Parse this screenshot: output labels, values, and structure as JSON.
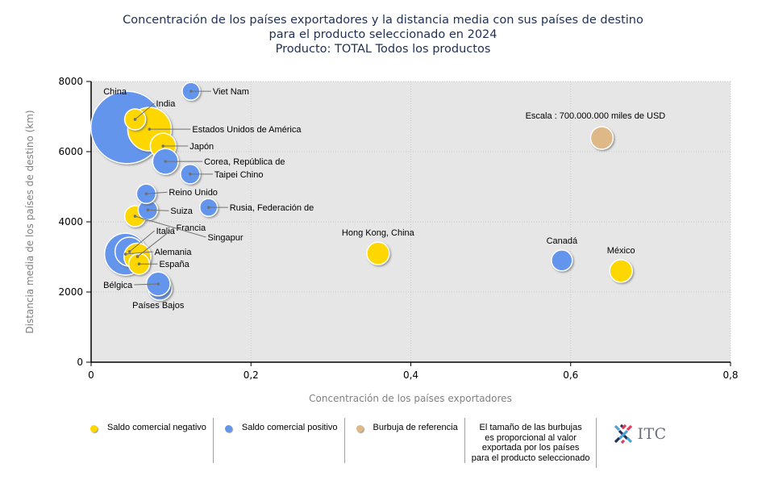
{
  "title": {
    "line1": "Concentración de los países exportadores y la distancia media con sus países de destino",
    "line2": "para el producto seleccionado en 2024",
    "line3": "Producto: TOTAL Todos los productos"
  },
  "colors": {
    "negative": "#FFD700",
    "positive": "#6495ED",
    "reference": "#DEB887",
    "plot_bg": "#E6E6E6"
  },
  "chart_data": {
    "type": "scatter",
    "subtype": "bubble",
    "title": "Concentración de los países exportadores y la distancia media con sus países de destino para el producto seleccionado en 2024 — Producto: TOTAL Todos los productos",
    "xlabel": "Concentración de los países exportadores",
    "ylabel": "Distancia media de los países de destino (km)",
    "xlim": [
      0,
      0.8
    ],
    "ylim": [
      0,
      8000
    ],
    "xticks": [
      "0",
      "0,2",
      "0,4",
      "0,6",
      "0,8"
    ],
    "yticks": [
      "0",
      "2000",
      "4000",
      "6000",
      "8000"
    ],
    "grid": true,
    "size_unit": "miles de USD",
    "reference": {
      "label": "Escala : 700.000.000 miles de USD",
      "x": 0.639,
      "y": 6390,
      "value": 700000000,
      "category": "reference"
    },
    "points": [
      {
        "name": "China",
        "x": 0.045,
        "y": 6690,
        "value": 7200000000,
        "category": "positive"
      },
      {
        "name": "Estados Unidos de América",
        "x": 0.073,
        "y": 6640,
        "value": 2600000000,
        "category": "negative"
      },
      {
        "name": "Alemania",
        "x": 0.043,
        "y": 3080,
        "value": 2400000000,
        "category": "positive"
      },
      {
        "name": "Italia",
        "x": 0.048,
        "y": 3150,
        "value": 1150000000,
        "category": "positive"
      },
      {
        "name": "Francia",
        "x": 0.058,
        "y": 3010,
        "value": 1000000000,
        "category": "negative"
      },
      {
        "name": "Japón",
        "x": 0.09,
        "y": 6160,
        "value": 900000000,
        "category": "negative"
      },
      {
        "name": "Corea, República de",
        "x": 0.093,
        "y": 5720,
        "value": 900000000,
        "category": "positive"
      },
      {
        "name": "Países Bajos",
        "x": 0.086,
        "y": 2110,
        "value": 800000000,
        "category": "positive"
      },
      {
        "name": "Bélgica",
        "x": 0.084,
        "y": 2230,
        "value": 780000000,
        "category": "positive"
      },
      {
        "name": "Hong Kong, China",
        "x": 0.359,
        "y": 3100,
        "value": 700000000,
        "category": "negative"
      },
      {
        "name": "México",
        "x": 0.663,
        "y": 2600,
        "value": 700000000,
        "category": "negative"
      },
      {
        "name": "España",
        "x": 0.06,
        "y": 2800,
        "value": 600000000,
        "category": "negative"
      },
      {
        "name": "Singapur",
        "x": 0.055,
        "y": 4160,
        "value": 600000000,
        "category": "negative"
      },
      {
        "name": "India",
        "x": 0.055,
        "y": 6920,
        "value": 600000000,
        "category": "negative"
      },
      {
        "name": "Canadá",
        "x": 0.589,
        "y": 2900,
        "value": 600000000,
        "category": "positive"
      },
      {
        "name": "Suiza",
        "x": 0.071,
        "y": 4340,
        "value": 520000000,
        "category": "positive"
      },
      {
        "name": "Reino Unido",
        "x": 0.069,
        "y": 4800,
        "value": 520000000,
        "category": "positive"
      },
      {
        "name": "Taipei Chino",
        "x": 0.124,
        "y": 5360,
        "value": 520000000,
        "category": "positive"
      },
      {
        "name": "Rusia, Federación de",
        "x": 0.147,
        "y": 4410,
        "value": 430000000,
        "category": "positive"
      },
      {
        "name": "Viet Nam",
        "x": 0.125,
        "y": 7720,
        "value": 430000000,
        "category": "positive"
      }
    ]
  },
  "legend": {
    "items": [
      {
        "label": "Saldo comercial negativo",
        "category": "negative"
      },
      {
        "label": "Saldo comercial positivo",
        "category": "positive"
      },
      {
        "label": "Burbuja de referencia",
        "category": "reference"
      }
    ],
    "note_lines": [
      "El tamaño de las burbujas",
      "es proporcional al valor",
      "exportada por los países",
      "para el producto seleccionado"
    ],
    "logo_text": "ITC"
  }
}
